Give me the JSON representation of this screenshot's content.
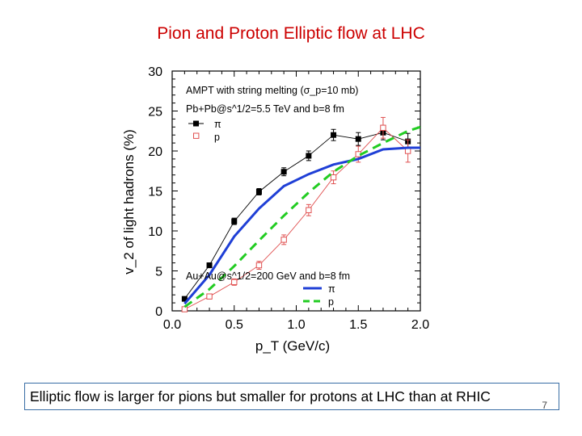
{
  "slide": {
    "title": "Pion and Proton Elliptic flow at LHC",
    "caption": "Elliptic flow is larger for pions but smaller for protons at LHC than at RHIC",
    "page_number": "7"
  },
  "chart_data": {
    "type": "line",
    "xlabel": "p_T (GeV/c)",
    "ylabel": "v_2 of light hadrons (%)",
    "xlim": [
      0,
      2.0
    ],
    "ylim": [
      0,
      30
    ],
    "xticks": [
      "0.0",
      "0.5",
      "1.0",
      "1.5",
      "2.0"
    ],
    "yticks": [
      "0",
      "5",
      "10",
      "15",
      "20",
      "25",
      "30"
    ],
    "annotation_top": "AMPT with string melting (σ_p=10 mb)",
    "legend_lhc_header": "Pb+Pb@s^1/2=5.5 TeV and b=8 fm",
    "legend_rhic_header": "Au+Au@s^1/2=200 GeV and b=8 fm",
    "series": [
      {
        "name": "π",
        "group": "LHC",
        "style": "black-line-filled-squares",
        "color": "#000000",
        "x": [
          0.1,
          0.3,
          0.5,
          0.7,
          0.9,
          1.1,
          1.3,
          1.5,
          1.7,
          1.9
        ],
        "y": [
          1.5,
          5.7,
          11.2,
          14.9,
          17.4,
          19.4,
          22.0,
          21.5,
          22.3,
          21.2
        ],
        "err": [
          0.2,
          0.3,
          0.4,
          0.4,
          0.5,
          0.6,
          0.7,
          0.8,
          0.9,
          1.0
        ]
      },
      {
        "name": "p",
        "group": "LHC",
        "style": "red-line-open-squares",
        "color": "#e05050",
        "x": [
          0.1,
          0.3,
          0.5,
          0.7,
          0.9,
          1.1,
          1.3,
          1.5,
          1.7,
          1.9
        ],
        "y": [
          0.2,
          1.8,
          3.6,
          5.7,
          8.9,
          12.6,
          16.7,
          19.6,
          22.9,
          20.0
        ],
        "err": [
          0.2,
          0.3,
          0.4,
          0.5,
          0.6,
          0.7,
          0.8,
          1.0,
          1.3,
          1.4
        ]
      },
      {
        "name": "π",
        "group": "RHIC",
        "style": "solid-blue",
        "color": "#1f3fd6",
        "x": [
          0.1,
          0.3,
          0.5,
          0.7,
          0.9,
          1.1,
          1.3,
          1.5,
          1.7,
          1.9,
          2.0
        ],
        "y": [
          0.9,
          4.5,
          9.3,
          12.8,
          15.6,
          17.1,
          18.3,
          19.0,
          20.2,
          20.4,
          20.4
        ]
      },
      {
        "name": "p",
        "group": "RHIC",
        "style": "dashed-green",
        "color": "#22cc22",
        "x": [
          0.1,
          0.3,
          0.5,
          0.7,
          0.9,
          1.1,
          1.3,
          1.5,
          1.7,
          1.9,
          2.0
        ],
        "y": [
          0.5,
          2.7,
          5.6,
          8.8,
          11.9,
          14.8,
          17.4,
          19.4,
          21.0,
          22.5,
          23.0
        ]
      }
    ]
  }
}
